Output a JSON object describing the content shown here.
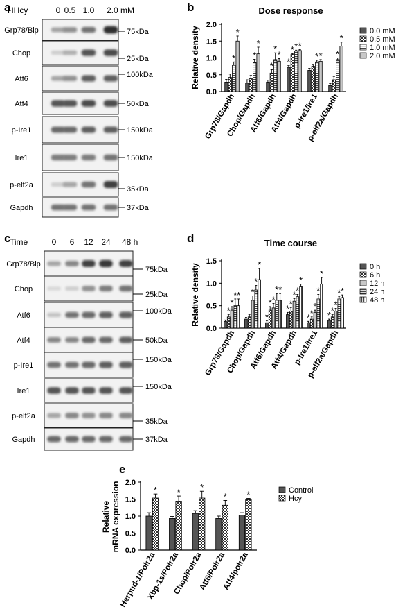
{
  "panels": {
    "a": {
      "letter": "a",
      "treatment_label": "HHcy",
      "lane_labels": [
        "0",
        "0.5",
        "1.0",
        "2.0 mM"
      ],
      "blots": [
        {
          "name": "Grp78/Bip",
          "marker": "75kDa"
        },
        {
          "name": "Chop",
          "marker": "25kDa"
        },
        {
          "name": "Atf6",
          "marker": "100kDa"
        },
        {
          "name": "Atf4",
          "marker": "50kDa"
        },
        {
          "name": "p-Ire1",
          "marker": "150kDa"
        },
        {
          "name": "Ire1",
          "marker": "150kDa"
        },
        {
          "name": "p-elf2a",
          "marker": "35kDa"
        },
        {
          "name": "Gapdh",
          "marker": "37kDa"
        }
      ],
      "intensities": [
        [
          0.35,
          0.45,
          0.6,
          0.95
        ],
        [
          0.15,
          0.3,
          0.75,
          0.8
        ],
        [
          0.35,
          0.45,
          0.7,
          0.7
        ],
        [
          0.75,
          0.75,
          0.8,
          0.8
        ],
        [
          0.65,
          0.65,
          0.7,
          0.7
        ],
        [
          0.55,
          0.55,
          0.55,
          0.6
        ],
        [
          0.15,
          0.35,
          0.6,
          0.85
        ],
        [
          0.6,
          0.6,
          0.6,
          0.6
        ]
      ]
    },
    "b": {
      "letter": "b"
    },
    "c": {
      "letter": "c",
      "treatment_label": "Time",
      "lane_labels": [
        "0",
        "6",
        "12",
        "24",
        "48 h"
      ],
      "blots": [
        {
          "name": "Grp78/Bip",
          "marker": "75kDa"
        },
        {
          "name": "Chop",
          "marker": "25kDa"
        },
        {
          "name": "Atf6",
          "marker": "100kDa"
        },
        {
          "name": "Atf4",
          "marker": "50kDa"
        },
        {
          "name": "p-Ire1",
          "marker": "150kDa"
        },
        {
          "name": "Ire1",
          "marker": "150kDa"
        },
        {
          "name": "p-elf2a",
          "marker": "35kDa"
        },
        {
          "name": "Gapdh",
          "marker": "37kDa"
        }
      ],
      "intensities": [
        [
          0.35,
          0.5,
          0.85,
          0.9,
          0.85
        ],
        [
          0.1,
          0.15,
          0.45,
          0.55,
          0.6
        ],
        [
          0.2,
          0.6,
          0.65,
          0.7,
          0.7
        ],
        [
          0.5,
          0.5,
          0.65,
          0.65,
          0.7
        ],
        [
          0.6,
          0.6,
          0.65,
          0.7,
          0.7
        ],
        [
          0.75,
          0.75,
          0.75,
          0.75,
          0.75
        ],
        [
          0.35,
          0.5,
          0.45,
          0.5,
          0.5
        ],
        [
          0.65,
          0.65,
          0.65,
          0.65,
          0.65
        ]
      ]
    },
    "d": {
      "letter": "d"
    },
    "e": {
      "letter": "e"
    }
  },
  "chart_data": [
    {
      "id": "b",
      "type": "bar",
      "title": "Dose response",
      "ylabel": "Relative density",
      "ylim": [
        0,
        2.0
      ],
      "yticks": [
        "0.0",
        "0.5",
        "1.0",
        "1.5",
        "2.0"
      ],
      "categories": [
        "Grp78/Gapdh",
        "Chop/Gapdh",
        "Atf6/Gapdh",
        "Atf4/Gapdh",
        "p-Ire1/Ire1",
        "p-elf2a/Gapdh"
      ],
      "series": [
        {
          "name": "0.0 mM",
          "pattern": "dark",
          "values": [
            0.28,
            0.25,
            0.28,
            0.72,
            0.63,
            0.18
          ],
          "errors": [
            0.08,
            0.1,
            0.06,
            0.05,
            0.06,
            0.06
          ]
        },
        {
          "name": "0.5 mM",
          "pattern": "check",
          "values": [
            0.42,
            0.38,
            0.55,
            1.1,
            0.75,
            0.35
          ],
          "errors": [
            0.1,
            0.1,
            0.1,
            0.03,
            0.06,
            0.1
          ]
        },
        {
          "name": "1.0 mM",
          "pattern": "hstripe",
          "values": [
            0.78,
            0.86,
            0.95,
            1.2,
            0.88,
            0.95
          ],
          "errors": [
            0.1,
            0.1,
            0.2,
            0.03,
            0.05,
            0.05
          ]
        },
        {
          "name": "2.0 mM",
          "pattern": "light",
          "values": [
            1.5,
            1.12,
            0.9,
            1.22,
            0.9,
            1.35
          ],
          "errors": [
            0.15,
            0.2,
            0.08,
            0.03,
            0.05,
            0.12
          ]
        }
      ],
      "stars": [
        [
          false,
          false,
          true,
          true
        ],
        [
          false,
          false,
          true,
          true
        ],
        [
          false,
          true,
          true,
          true
        ],
        [
          true,
          true,
          true,
          true
        ],
        [
          false,
          false,
          true,
          true
        ],
        [
          false,
          false,
          true,
          true
        ]
      ],
      "star_symbol": "*"
    },
    {
      "id": "d",
      "type": "bar",
      "title": "Time course",
      "ylabel": "Relative density",
      "ylim": [
        0,
        1.5
      ],
      "yticks": [
        "0.0",
        "0.5",
        "1.0",
        "1.5"
      ],
      "categories": [
        "Grp78/Gapdh",
        "Chop/Gapdh",
        "Atf6/Gapdh",
        "Atf4/Gapdh",
        "p-Ire1/Ire1",
        "p-elf2a/Gapdh"
      ],
      "series": [
        {
          "name": "0 h",
          "pattern": "dark",
          "values": [
            0.15,
            0.2,
            0.12,
            0.3,
            0.12,
            0.17
          ],
          "errors": [
            0.03,
            0.04,
            0.04,
            0.05,
            0.03,
            0.03
          ]
        },
        {
          "name": "6 h",
          "pattern": "check",
          "values": [
            0.25,
            0.25,
            0.4,
            0.38,
            0.2,
            0.25
          ],
          "errors": [
            0.05,
            0.05,
            0.08,
            0.08,
            0.05,
            0.05
          ]
        },
        {
          "name": "12 h",
          "pattern": "light",
          "values": [
            0.4,
            0.62,
            0.45,
            0.6,
            0.35,
            0.38
          ],
          "errors": [
            0.08,
            0.1,
            0.1,
            0.06,
            0.05,
            0.06
          ]
        },
        {
          "name": "24 h",
          "pattern": "hstripe",
          "values": [
            0.5,
            0.85,
            0.62,
            0.7,
            0.65,
            0.65
          ],
          "errors": [
            0.15,
            0.1,
            0.15,
            0.05,
            0.1,
            0.05
          ]
        },
        {
          "name": "48 h",
          "pattern": "vstripe",
          "values": [
            0.5,
            1.08,
            0.62,
            0.92,
            0.98,
            0.68
          ],
          "errors": [
            0.15,
            0.25,
            0.15,
            0.06,
            0.15,
            0.06
          ]
        }
      ],
      "stars": [
        [
          false,
          true,
          true,
          true,
          true
        ],
        [
          false,
          false,
          true,
          true,
          true
        ],
        [
          true,
          true,
          true,
          true,
          true
        ],
        [
          true,
          true,
          true,
          true,
          true
        ],
        [
          true,
          true,
          true,
          true,
          true
        ],
        [
          true,
          true,
          true,
          true,
          true
        ]
      ],
      "star_symbol": "*"
    },
    {
      "id": "e",
      "type": "bar",
      "title": "",
      "ylabel": "Relative mRNA expression",
      "ylim": [
        0,
        2.0
      ],
      "yticks": [
        "0.0",
        "0.5",
        "1.0",
        "1.5",
        "2.0"
      ],
      "categories": [
        "Herpud-1/Polr2a",
        "Xbp-1s/Polr2a",
        "Chop/Polr2a",
        "Atf6/Polr2a",
        "Atf4/polr2a"
      ],
      "series": [
        {
          "name": "Control",
          "pattern": "dark",
          "values": [
            1.0,
            0.93,
            1.08,
            0.93,
            1.03
          ],
          "errors": [
            0.1,
            0.06,
            0.08,
            0.07,
            0.07
          ]
        },
        {
          "name": "Hcy",
          "pattern": "check",
          "values": [
            1.53,
            1.44,
            1.53,
            1.32,
            1.48
          ],
          "errors": [
            0.12,
            0.15,
            0.2,
            0.14,
            0.04
          ]
        }
      ],
      "stars": [
        [
          false,
          true
        ],
        [
          false,
          true
        ],
        [
          false,
          true
        ],
        [
          false,
          true
        ],
        [
          false,
          true
        ]
      ],
      "star_symbol": "*"
    }
  ]
}
